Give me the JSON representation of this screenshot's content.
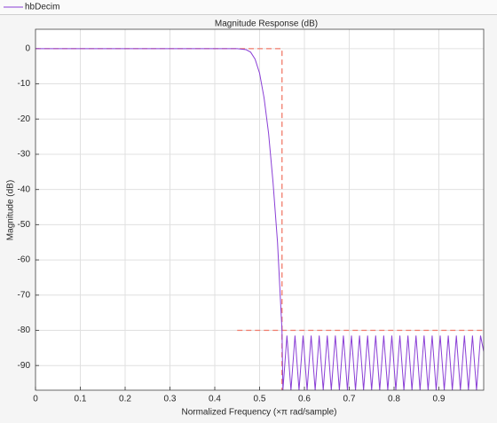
{
  "chart_data": {
    "type": "line",
    "title": "Magnitude Response (dB)",
    "xlabel": "Normalized Frequency (×π rad/sample)",
    "ylabel": "Magnitude (dB)",
    "xlim": [
      0,
      1
    ],
    "ylim": [
      -97,
      5.5
    ],
    "xticks": [
      0,
      0.1,
      0.2,
      0.3,
      0.4,
      0.5,
      0.6,
      0.7,
      0.8,
      0.9
    ],
    "yticks": [
      0,
      -10,
      -20,
      -30,
      -40,
      -50,
      -60,
      -70,
      -80,
      -90
    ],
    "grid": true,
    "series": [
      {
        "name": "hbDecim",
        "color": "#8a3fd6",
        "x": [
          0,
          0.4,
          0.45,
          0.47,
          0.48,
          0.49,
          0.5,
          0.51,
          0.52,
          0.53,
          0.54,
          0.55,
          0.552,
          0.561,
          0.57,
          0.579,
          0.588,
          0.597,
          0.606,
          0.615,
          0.624,
          0.633,
          0.642,
          0.651,
          0.66,
          0.669,
          0.678,
          0.687,
          0.696,
          0.705,
          0.714,
          0.723,
          0.732,
          0.741,
          0.75,
          0.759,
          0.768,
          0.777,
          0.786,
          0.795,
          0.804,
          0.813,
          0.822,
          0.831,
          0.84,
          0.849,
          0.858,
          0.867,
          0.876,
          0.885,
          0.894,
          0.903,
          0.912,
          0.921,
          0.93,
          0.939,
          0.948,
          0.957,
          0.966,
          0.975,
          0.984,
          0.993,
          1
        ],
        "values": [
          0,
          0,
          0,
          -0.3,
          -1,
          -3,
          -7,
          -14,
          -24,
          -38,
          -55,
          -80,
          -97,
          -81.5,
          -97,
          -81.5,
          -97,
          -81.5,
          -97,
          -81.5,
          -97,
          -81.5,
          -97,
          -81.5,
          -97,
          -81.5,
          -97,
          -81.5,
          -97,
          -81.5,
          -97,
          -81.5,
          -97,
          -81.5,
          -97,
          -81.5,
          -97,
          -81.5,
          -97,
          -81.5,
          -97,
          -81.5,
          -97,
          -81.5,
          -97,
          -81.5,
          -97,
          -81.5,
          -97,
          -81.5,
          -97,
          -81.5,
          -97,
          -81.5,
          -97,
          -81.5,
          -97,
          -81.5,
          -97,
          -81.5,
          -97,
          -81.5,
          -86
        ]
      }
    ],
    "mask": {
      "color": "#f07a6a",
      "x": [
        0,
        0.55,
        0.55,
        0.45,
        0.45,
        1
      ],
      "values": [
        0,
        0,
        -97,
        null,
        -80,
        -80
      ],
      "x_break": [
        0,
        0.55,
        0.55,
        0.45,
        0.45,
        1
      ]
    }
  }
}
